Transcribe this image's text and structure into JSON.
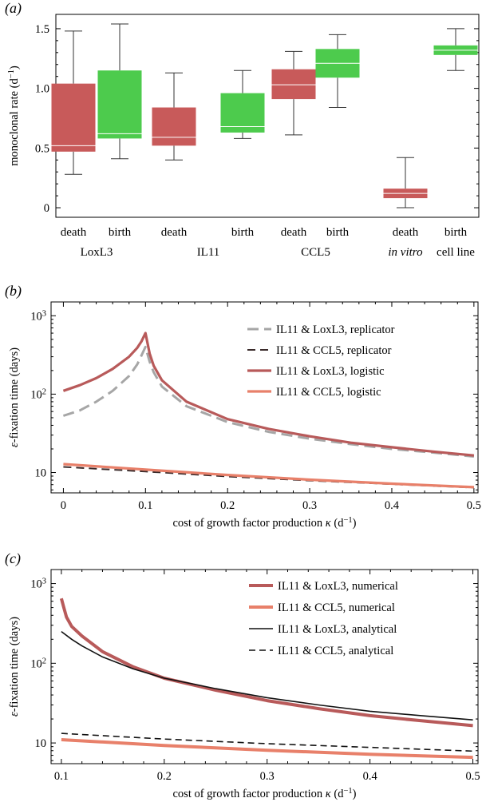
{
  "chart_data": [
    {
      "panel": "(a)",
      "type": "box",
      "ylabel": "monoclonal rate (d⁻¹)",
      "yticks": [
        "0",
        "0.5",
        "1.0",
        "1.5"
      ],
      "ylim": [
        -0.08,
        1.62
      ],
      "colors": {
        "death": "#c85a5a",
        "birth": "#4dcb4d"
      },
      "groups": [
        {
          "label": "LoxL3",
          "italic": false,
          "boxes": [
            {
              "label": "death",
              "kind": "death",
              "min": 0.28,
              "q1": 0.47,
              "median": 0.52,
              "q3": 1.04,
              "max": 1.48
            },
            {
              "label": "birth",
              "kind": "birth",
              "min": 0.41,
              "q1": 0.58,
              "median": 0.62,
              "q3": 1.15,
              "max": 1.54
            }
          ]
        },
        {
          "label": "IL11",
          "italic": false,
          "boxes": [
            {
              "label": "death",
              "kind": "death",
              "min": 0.4,
              "q1": 0.52,
              "median": 0.59,
              "q3": 0.84,
              "max": 1.13
            },
            {
              "label": "birth",
              "kind": "birth",
              "min": 0.58,
              "q1": 0.63,
              "median": 0.68,
              "q3": 0.96,
              "max": 1.15
            }
          ]
        },
        {
          "label": "CCL5",
          "italic": false,
          "boxes": [
            {
              "label": "death",
              "kind": "death",
              "min": 0.61,
              "q1": 0.91,
              "median": 1.03,
              "q3": 1.16,
              "max": 1.31
            },
            {
              "label": "birth",
              "kind": "birth",
              "min": 0.84,
              "q1": 1.09,
              "median": 1.21,
              "q3": 1.33,
              "max": 1.45
            }
          ]
        }
      ],
      "extra_boxes": [
        {
          "label": "death",
          "kind": "death",
          "group_label": "in vitro",
          "italic": true,
          "min": 0.0,
          "q1": 0.08,
          "median": 0.12,
          "q3": 0.16,
          "max": 0.42
        },
        {
          "label": "birth",
          "kind": "birth",
          "group_label": "cell line",
          "italic": false,
          "min": 1.15,
          "q1": 1.28,
          "median": 1.32,
          "q3": 1.36,
          "max": 1.5
        }
      ]
    },
    {
      "panel": "(b)",
      "type": "line",
      "yscale": "log",
      "ylabel": "ε-fixation time (days)",
      "xlabel": "cost of growth factor production κ (d⁻¹)",
      "xlim": [
        -0.015,
        0.505
      ],
      "ylim": [
        5.5,
        1500
      ],
      "xticks": [
        {
          "v": 0,
          "t": "0"
        },
        {
          "v": 0.1,
          "t": "0.1"
        },
        {
          "v": 0.2,
          "t": "0.2"
        },
        {
          "v": 0.3,
          "t": "0.3"
        },
        {
          "v": 0.4,
          "t": "0.4"
        },
        {
          "v": 0.5,
          "t": "0.5"
        }
      ],
      "yticks": [
        {
          "v": 10,
          "t": "10"
        },
        {
          "v": 100,
          "t": "10",
          "sup": "2"
        },
        {
          "v": 1000,
          "t": "10",
          "sup": "3"
        }
      ],
      "series": [
        {
          "name": "IL11 & LoxL3, replicator",
          "color": "#a6a6a6",
          "dash": "14,7",
          "width": 3,
          "x": [
            0,
            0.02,
            0.04,
            0.06,
            0.08,
            0.09,
            0.095,
            0.1,
            0.105,
            0.11,
            0.12,
            0.15,
            0.2,
            0.25,
            0.3,
            0.35,
            0.4,
            0.45,
            0.5
          ],
          "y": [
            53,
            62,
            80,
            110,
            170,
            240,
            310,
            400,
            260,
            190,
            125,
            70,
            44,
            33,
            27,
            23,
            20,
            18,
            16
          ]
        },
        {
          "name": "IL11 & CCL5, replicator",
          "color": "#3a2a2a",
          "dash": "10,6",
          "width": 2,
          "x": [
            0,
            0.1,
            0.2,
            0.3,
            0.4,
            0.5
          ],
          "y": [
            11.8,
            10.3,
            8.9,
            7.9,
            7.1,
            6.4
          ]
        },
        {
          "name": "IL11 & LoxL3, logistic",
          "color": "#b85a5a",
          "dash": "",
          "width": 3.2,
          "x": [
            0,
            0.02,
            0.04,
            0.06,
            0.08,
            0.09,
            0.095,
            0.1,
            0.105,
            0.11,
            0.12,
            0.15,
            0.2,
            0.25,
            0.3,
            0.35,
            0.4,
            0.45,
            0.5
          ],
          "y": [
            110,
            130,
            160,
            210,
            300,
            390,
            470,
            600,
            330,
            230,
            150,
            80,
            48,
            36,
            29,
            24,
            21,
            18.5,
            16.5
          ]
        },
        {
          "name": "IL11 & CCL5, logistic",
          "color": "#e8806a",
          "dash": "",
          "width": 3.2,
          "x": [
            0,
            0.1,
            0.2,
            0.3,
            0.4,
            0.5
          ],
          "y": [
            12.8,
            10.9,
            9.3,
            8.1,
            7.2,
            6.5
          ]
        }
      ]
    },
    {
      "panel": "(c)",
      "type": "line",
      "yscale": "log",
      "ylabel": "ε-fixation time (days)",
      "xlabel": "cost of growth factor production κ (d⁻¹)",
      "xlim": [
        0.09,
        0.505
      ],
      "ylim": [
        5.5,
        1500
      ],
      "xticks": [
        {
          "v": 0.1,
          "t": "0.1"
        },
        {
          "v": 0.2,
          "t": "0.2"
        },
        {
          "v": 0.3,
          "t": "0.3"
        },
        {
          "v": 0.4,
          "t": "0.4"
        },
        {
          "v": 0.5,
          "t": "0.5"
        }
      ],
      "yticks": [
        {
          "v": 10,
          "t": "10"
        },
        {
          "v": 100,
          "t": "10",
          "sup": "2"
        },
        {
          "v": 1000,
          "t": "10",
          "sup": "3"
        }
      ],
      "series": [
        {
          "name": "IL11 & LoxL3, numerical",
          "color": "#b85a5a",
          "dash": "",
          "width": 4,
          "x": [
            0.1,
            0.102,
            0.105,
            0.11,
            0.12,
            0.14,
            0.17,
            0.2,
            0.25,
            0.3,
            0.35,
            0.4,
            0.45,
            0.5
          ],
          "y": [
            650,
            520,
            380,
            290,
            220,
            140,
            90,
            65,
            46,
            34,
            27,
            22,
            19,
            16.5
          ]
        },
        {
          "name": "IL11 & CCL5, numerical",
          "color": "#e8806a",
          "dash": "",
          "width": 4,
          "x": [
            0.1,
            0.2,
            0.3,
            0.4,
            0.5
          ],
          "y": [
            11,
            9.3,
            8.1,
            7.2,
            6.6
          ]
        },
        {
          "name": "IL11 & LoxL3, analytical",
          "color": "#111111",
          "dash": "",
          "width": 1.6,
          "x": [
            0.1,
            0.11,
            0.12,
            0.14,
            0.17,
            0.2,
            0.25,
            0.3,
            0.35,
            0.4,
            0.45,
            0.5
          ],
          "y": [
            250,
            200,
            165,
            120,
            85,
            65,
            48,
            37,
            30,
            25,
            22,
            19.5
          ]
        },
        {
          "name": "IL11 & CCL5, analytical",
          "color": "#111111",
          "dash": "8,5",
          "width": 1.6,
          "x": [
            0.1,
            0.2,
            0.3,
            0.4,
            0.5
          ],
          "y": [
            13.2,
            11.2,
            9.8,
            8.8,
            7.9
          ]
        }
      ]
    }
  ]
}
